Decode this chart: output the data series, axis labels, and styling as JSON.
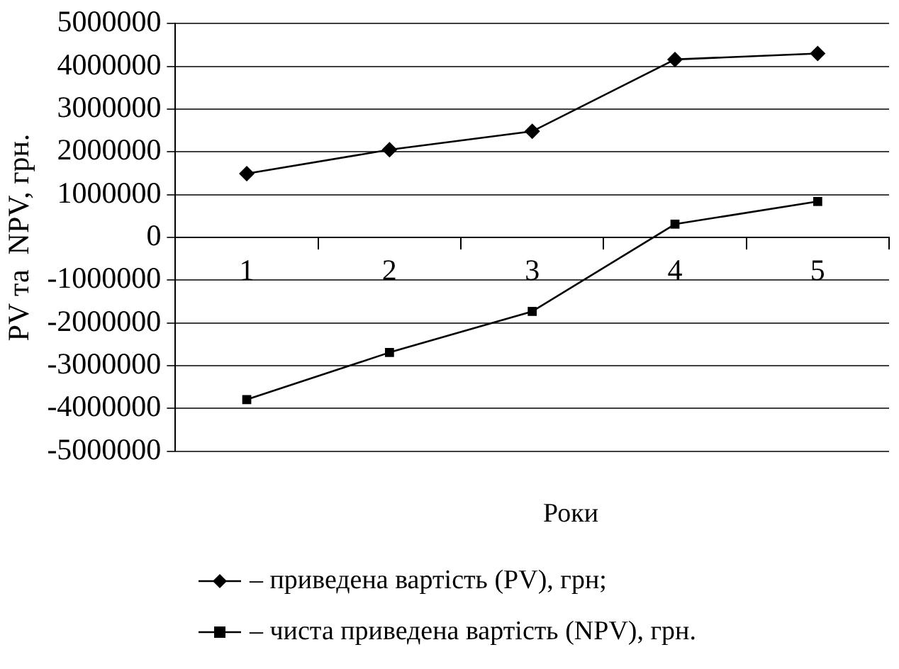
{
  "chart_data": {
    "type": "line",
    "xlabel": "Роки",
    "ylabel": "PV та  NPV, грн.",
    "categories": [
      "1",
      "2",
      "3",
      "4",
      "5"
    ],
    "ylim": [
      -5000000,
      5000000
    ],
    "yticks": [
      -5000000,
      -4000000,
      -3000000,
      -2000000,
      -1000000,
      0,
      1000000,
      2000000,
      3000000,
      4000000,
      5000000
    ],
    "grid": "y",
    "legend": "bottom",
    "line_style": "solid",
    "series": [
      {
        "name": "– приведена вартість (PV), грн;",
        "color": "#000000",
        "marker": "diamond",
        "values": [
          1490000,
          2050000,
          2480000,
          4160000,
          4300000
        ]
      },
      {
        "name": "– чиста приведена вартість (NPV), грн.",
        "color": "#000000",
        "marker": "square",
        "values": [
          -3790000,
          -2690000,
          -1730000,
          310000,
          840000
        ]
      }
    ]
  }
}
